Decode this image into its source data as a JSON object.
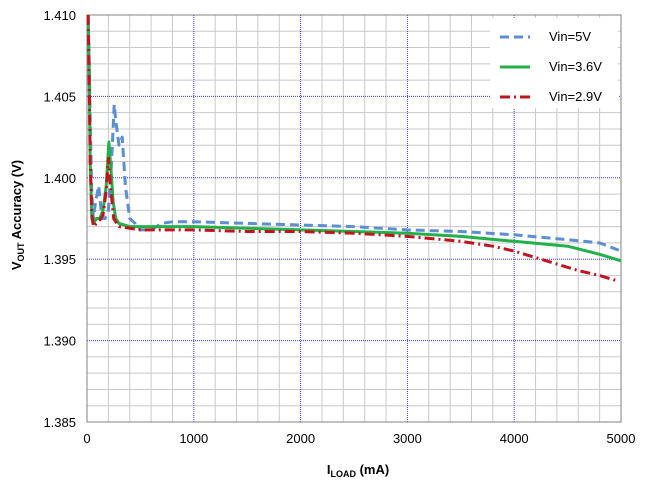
{
  "chart_data": {
    "type": "line",
    "title": "",
    "xlabel_main": "I",
    "xlabel_sub": "LOAD",
    "xlabel_unit": " (mA)",
    "ylabel_main": "V",
    "ylabel_sub": "OUT",
    "ylabel_rest": " Accuracy (V)",
    "xlim": [
      0,
      5000
    ],
    "ylim": [
      1.385,
      1.41
    ],
    "x_ticks": [
      0,
      1000,
      2000,
      3000,
      4000,
      5000
    ],
    "y_ticks": [
      1.385,
      1.39,
      1.395,
      1.4,
      1.405,
      1.41
    ],
    "y_tick_labels": [
      "1.385",
      "1.390",
      "1.395",
      "1.400",
      "1.405",
      "1.410"
    ],
    "minor_x_step": 200,
    "minor_y_step": 0.001,
    "grid": true,
    "legend_position": "top-right",
    "series": [
      {
        "name": "Vin=5V",
        "color": "#5b8fd1",
        "dash": "dashed",
        "points": [
          [
            10,
            1.41
          ],
          [
            20,
            1.4075
          ],
          [
            30,
            1.4035
          ],
          [
            45,
            1.399
          ],
          [
            60,
            1.3975
          ],
          [
            80,
            1.3985
          ],
          [
            110,
            1.3995
          ],
          [
            140,
            1.3975
          ],
          [
            170,
            1.3975
          ],
          [
            200,
            1.398
          ],
          [
            230,
            1.401
          ],
          [
            255,
            1.4045
          ],
          [
            270,
            1.4035
          ],
          [
            300,
            1.402
          ],
          [
            330,
            1.4025
          ],
          [
            360,
            1.3995
          ],
          [
            400,
            1.3975
          ],
          [
            450,
            1.3972
          ],
          [
            500,
            1.3968
          ],
          [
            600,
            1.3968
          ],
          [
            700,
            1.3972
          ],
          [
            800,
            1.3973
          ],
          [
            1000,
            1.3973
          ],
          [
            1500,
            1.3972
          ],
          [
            2000,
            1.3971
          ],
          [
            2500,
            1.397
          ],
          [
            3000,
            1.3968
          ],
          [
            3500,
            1.3967
          ],
          [
            4000,
            1.3965
          ],
          [
            4500,
            1.3962
          ],
          [
            4800,
            1.396
          ],
          [
            5000,
            1.3955
          ]
        ]
      },
      {
        "name": "Vin=3.6V",
        "color": "#22b04a",
        "dash": "solid",
        "points": [
          [
            10,
            1.41
          ],
          [
            20,
            1.407
          ],
          [
            30,
            1.401
          ],
          [
            45,
            1.3975
          ],
          [
            60,
            1.3972
          ],
          [
            90,
            1.3975
          ],
          [
            120,
            1.3975
          ],
          [
            150,
            1.398
          ],
          [
            180,
            1.3995
          ],
          [
            205,
            1.4022
          ],
          [
            225,
            1.4005
          ],
          [
            245,
            1.3985
          ],
          [
            270,
            1.3975
          ],
          [
            300,
            1.3972
          ],
          [
            400,
            1.397
          ],
          [
            600,
            1.397
          ],
          [
            800,
            1.397
          ],
          [
            1000,
            1.397
          ],
          [
            1500,
            1.3969
          ],
          [
            2000,
            1.3968
          ],
          [
            2500,
            1.3967
          ],
          [
            3000,
            1.3966
          ],
          [
            3500,
            1.3964
          ],
          [
            4000,
            1.3961
          ],
          [
            4500,
            1.3958
          ],
          [
            4800,
            1.3953
          ],
          [
            5000,
            1.3949
          ]
        ]
      },
      {
        "name": "Vin=2.9V",
        "color": "#c0141e",
        "dash": "dashdot",
        "points": [
          [
            10,
            1.41
          ],
          [
            20,
            1.4065
          ],
          [
            30,
            1.401
          ],
          [
            45,
            1.3978
          ],
          [
            60,
            1.397
          ],
          [
            90,
            1.3972
          ],
          [
            120,
            1.3974
          ],
          [
            150,
            1.3977
          ],
          [
            180,
            1.3992
          ],
          [
            200,
            1.4012
          ],
          [
            220,
            1.3995
          ],
          [
            250,
            1.3975
          ],
          [
            300,
            1.397
          ],
          [
            500,
            1.3968
          ],
          [
            1000,
            1.3968
          ],
          [
            1500,
            1.3967
          ],
          [
            2000,
            1.3967
          ],
          [
            2500,
            1.3966
          ],
          [
            3000,
            1.3964
          ],
          [
            3500,
            1.3961
          ],
          [
            3800,
            1.3958
          ],
          [
            4000,
            1.3955
          ],
          [
            4300,
            1.3949
          ],
          [
            4600,
            1.3943
          ],
          [
            4800,
            1.394
          ],
          [
            4950,
            1.3937
          ]
        ]
      }
    ]
  }
}
